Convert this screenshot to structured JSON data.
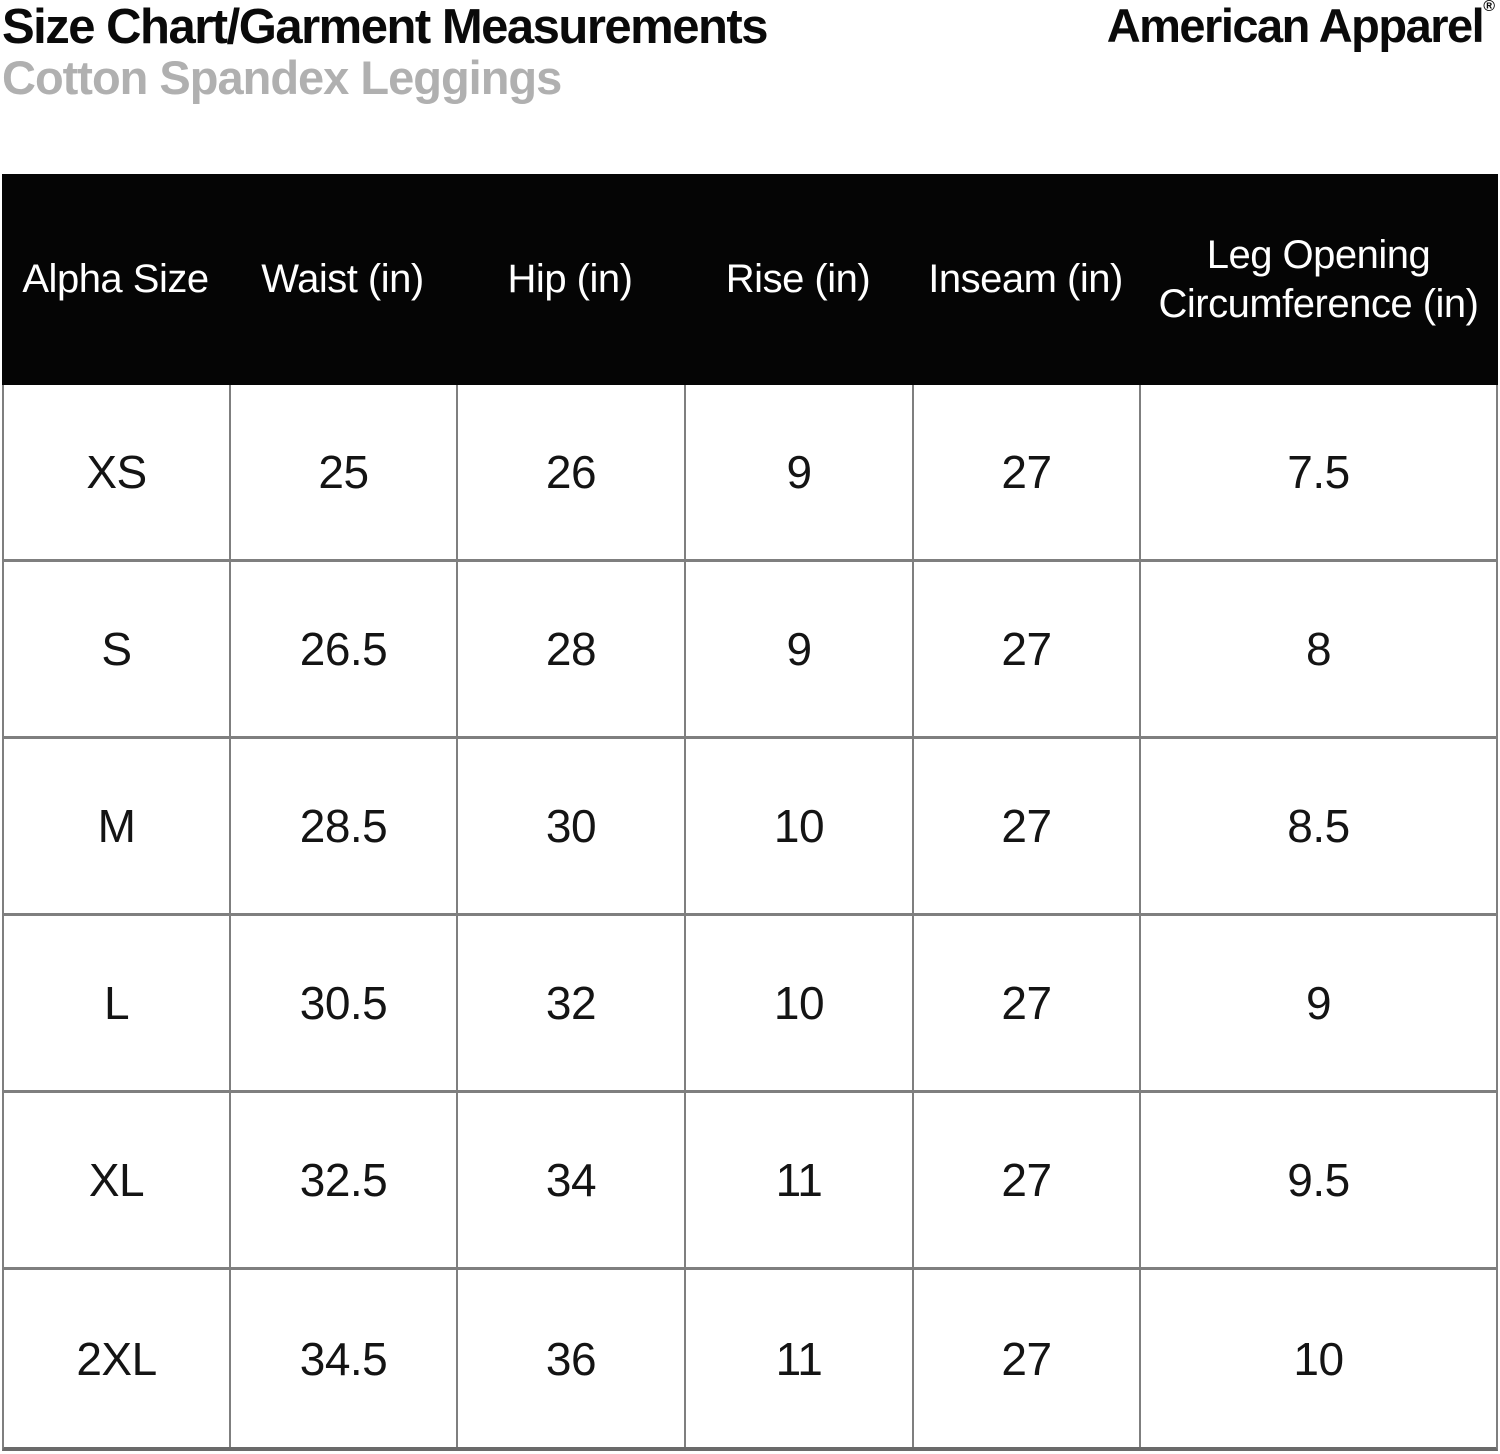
{
  "header": {
    "title": "Size Chart/Garment Measurements",
    "subtitle": "Cotton Spandex Leggings",
    "brand": "American Apparel",
    "brand_reg_mark": "®"
  },
  "colors": {
    "table_header_bg": "#050505",
    "table_header_text": "#ffffff",
    "grid_line": "#7f7f7f",
    "subtitle_text": "#b0b0b0",
    "title_text": "#0a0a0a",
    "cell_text": "#141414"
  },
  "table": {
    "columns": [
      "Alpha Size",
      "Waist (in)",
      "Hip (in)",
      "Rise (in)",
      "Inseam (in)",
      "Leg Opening Circumference (in)"
    ],
    "rows": [
      {
        "size": "XS",
        "values": [
          "25",
          "26",
          "9",
          "27",
          "7.5"
        ]
      },
      {
        "size": "S",
        "values": [
          "26.5",
          "28",
          "9",
          "27",
          "8"
        ]
      },
      {
        "size": "M",
        "values": [
          "28.5",
          "30",
          "10",
          "27",
          "8.5"
        ]
      },
      {
        "size": "L",
        "values": [
          "30.5",
          "32",
          "10",
          "27",
          "9"
        ]
      },
      {
        "size": "XL",
        "values": [
          "32.5",
          "34",
          "11",
          "27",
          "9.5"
        ]
      },
      {
        "size": "2XL",
        "values": [
          "34.5",
          "36",
          "11",
          "27",
          "10"
        ]
      }
    ]
  }
}
